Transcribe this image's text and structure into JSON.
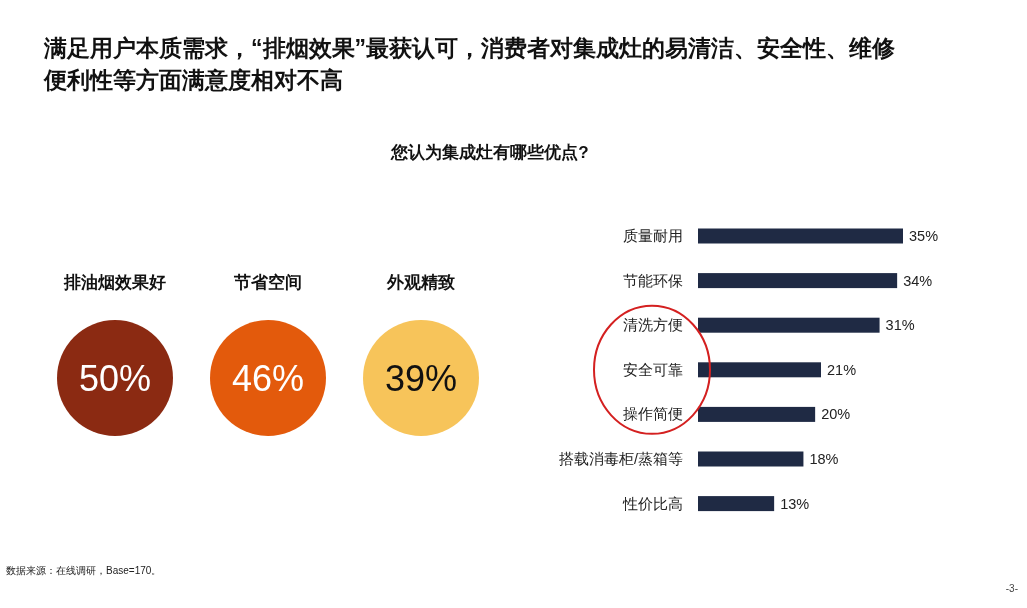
{
  "chart_data": [
    {
      "type": "other",
      "title": "满足用户本质需求，“排烟效果”最获认可，消费者对集成灶的易清洁、安全性、维修便利性等方面满意度相对不高",
      "categories": [
        "排油烟效果好",
        "节省空间",
        "外观精致"
      ],
      "values": [
        50,
        46,
        39
      ],
      "value_labels": [
        "50%",
        "46%",
        "39%"
      ],
      "colors": [
        "#8b2a12",
        "#e35a0c",
        "#f7c45a"
      ]
    },
    {
      "type": "bar",
      "orientation": "horizontal",
      "title": "您认为集成灶有哪些优点?",
      "categories": [
        "质量耐用",
        "节能环保",
        "清洗方便",
        "安全可靠",
        "操作简便",
        "搭载消毒柜/蒸箱等",
        "性价比高"
      ],
      "values": [
        35,
        34,
        31,
        21,
        20,
        18,
        13
      ],
      "value_labels": [
        "35%",
        "34%",
        "31%",
        "21%",
        "20%",
        "18%",
        "13%"
      ],
      "color": "#1f2a44",
      "annotations": [
        "数据来源：在线调研，Base=170。",
        "-3-"
      ]
    }
  ]
}
